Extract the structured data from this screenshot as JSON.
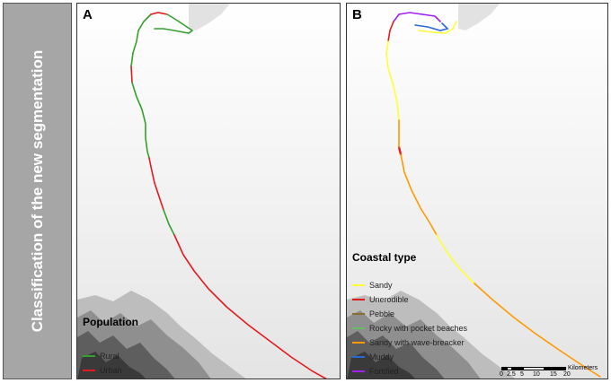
{
  "sidebar": {
    "title": "Classification of the new segmentation"
  },
  "panel_a": {
    "label": "A",
    "legend": {
      "title": "Population",
      "items": [
        {
          "label": "Rural",
          "color": "#33a02c"
        },
        {
          "label": "Urban",
          "color": "#e31a1c"
        }
      ]
    }
  },
  "panel_b": {
    "label": "B",
    "legend": {
      "title": "Coastal type",
      "items": [
        {
          "label": "Sandy",
          "color": "#ffff33"
        },
        {
          "label": "Unerodible",
          "color": "#e31a1c"
        },
        {
          "label": "Pebble",
          "color": "#8c6d31"
        },
        {
          "label": "Rocky with pocket beaches",
          "color": "#66bd63"
        },
        {
          "label": "Sandy with wave-breacker",
          "color": "#ff9900"
        },
        {
          "label": "Muddy",
          "color": "#2b6ad6"
        },
        {
          "label": "Fortified",
          "color": "#a020f0"
        }
      ]
    },
    "scale": {
      "ticks": [
        "0",
        "2.5",
        "5",
        "10",
        "15",
        "20"
      ],
      "unit": "Kilometers"
    }
  }
}
